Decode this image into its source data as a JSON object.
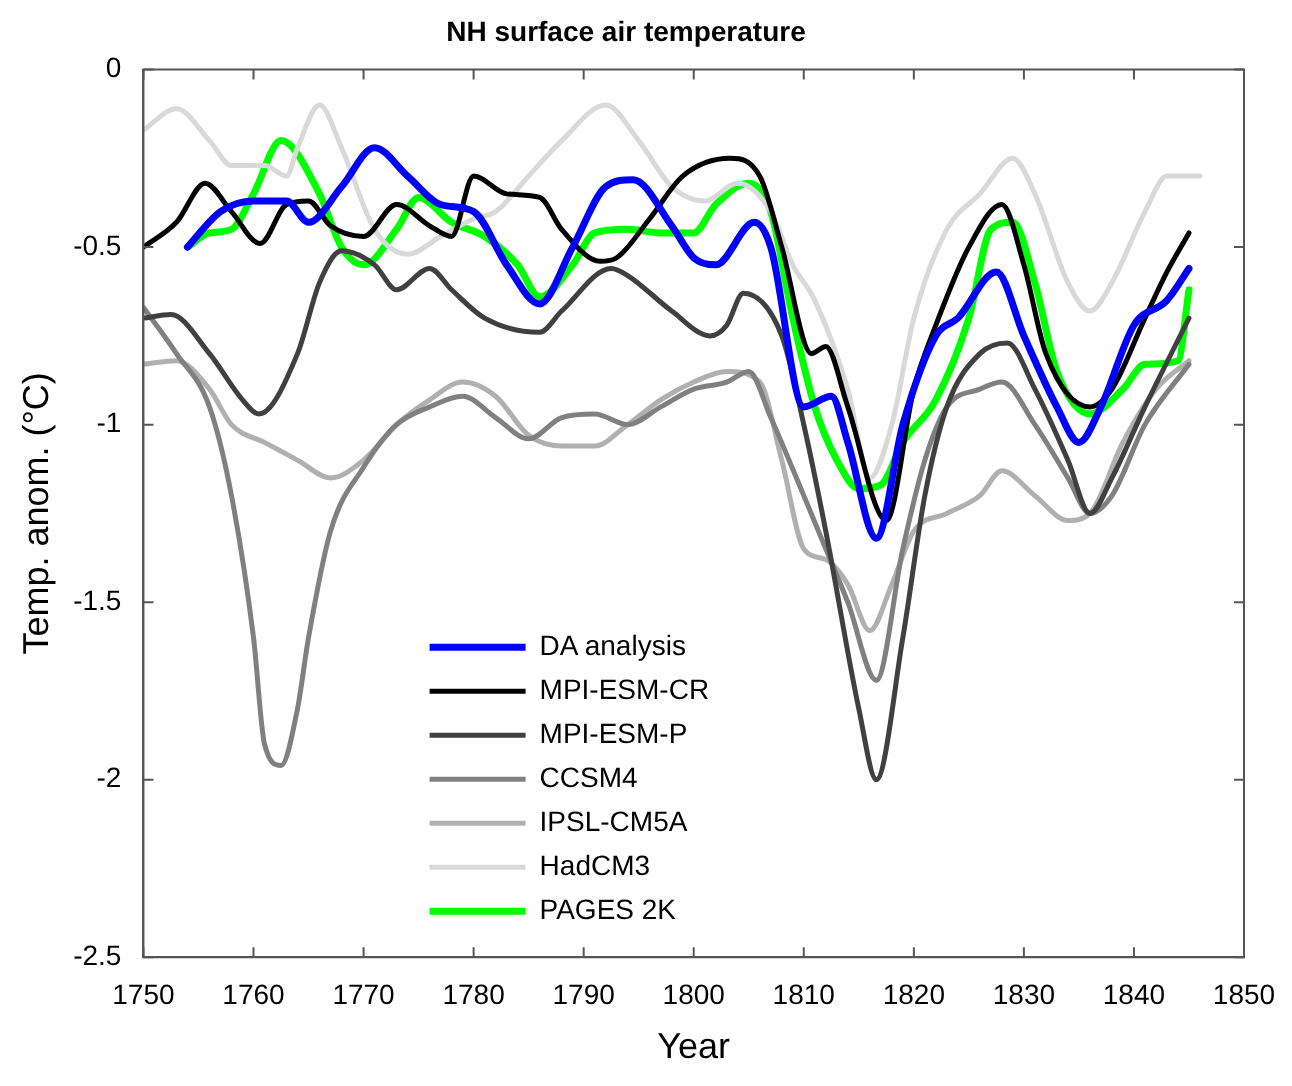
{
  "chart_data": {
    "type": "line",
    "title": "NH surface air temperature",
    "xlabel": "Year",
    "ylabel": "Temp. anom. (°C)",
    "xlim": [
      1750,
      1850
    ],
    "xticks": [
      1750,
      1760,
      1770,
      1780,
      1790,
      1800,
      1810,
      1820,
      1830,
      1840,
      1850
    ],
    "ylim": [
      -2.5,
      0
    ],
    "yticks": [
      -2.5,
      -2,
      -1.5,
      -1,
      -0.5,
      0
    ],
    "grid": false,
    "legend": "bottom",
    "marker": "none",
    "line_style": "solid",
    "series": [
      {
        "name": "DA analysis",
        "color": "#0000ff",
        "x": [
          1754,
          1757,
          1760,
          1763,
          1765,
          1768,
          1771,
          1774,
          1777,
          1780,
          1783,
          1786,
          1789,
          1792,
          1794.5,
          1798,
          1800,
          1802,
          1805.5,
          1807,
          1810,
          1812.5,
          1814,
          1816.6,
          1819,
          1822,
          1824,
          1827.5,
          1830,
          1833,
          1835,
          1837,
          1840,
          1843,
          1845
        ],
        "values": [
          -0.5,
          -0.4,
          -0.37,
          -0.37,
          -0.43,
          -0.33,
          -0.22,
          -0.3,
          -0.38,
          -0.4,
          -0.55,
          -0.66,
          -0.5,
          -0.33,
          -0.31,
          -0.44,
          -0.53,
          -0.55,
          -0.43,
          -0.5,
          -0.95,
          -0.92,
          -1.05,
          -1.32,
          -1.0,
          -0.75,
          -0.7,
          -0.57,
          -0.75,
          -0.95,
          -1.05,
          -0.95,
          -0.72,
          -0.65,
          -0.56
        ]
      },
      {
        "name": "MPI-ESM-CR",
        "color": "#000000",
        "x": [
          1750,
          1753,
          1755.6,
          1758,
          1760.6,
          1763,
          1765,
          1767,
          1770,
          1773,
          1776,
          1778,
          1780,
          1783,
          1786,
          1788,
          1791.5,
          1793,
          1796,
          1799,
          1803.3,
          1806,
          1808,
          1810.7,
          1812,
          1814,
          1817.5,
          1820,
          1822,
          1825,
          1828,
          1830,
          1832,
          1836,
          1838,
          1841,
          1843,
          1845
        ],
        "values": [
          -0.5,
          -0.43,
          -0.32,
          -0.4,
          -0.49,
          -0.38,
          -0.37,
          -0.44,
          -0.47,
          -0.38,
          -0.44,
          -0.47,
          -0.3,
          -0.35,
          -0.36,
          -0.45,
          -0.54,
          -0.53,
          -0.42,
          -0.3,
          -0.25,
          -0.3,
          -0.5,
          -0.8,
          -0.78,
          -0.95,
          -1.27,
          -0.9,
          -0.72,
          -0.5,
          -0.38,
          -0.55,
          -0.8,
          -0.95,
          -0.9,
          -0.7,
          -0.57,
          -0.46
        ]
      },
      {
        "name": "MPI-ESM-P",
        "color": "#404040",
        "x": [
          1750,
          1752.5,
          1756,
          1759,
          1760.5,
          1764,
          1766,
          1768,
          1771,
          1773,
          1776,
          1778,
          1781,
          1786,
          1788,
          1792.5,
          1794,
          1798,
          1801.5,
          1803,
          1804.5,
          1808,
          1810,
          1812,
          1815,
          1816.6,
          1819,
          1821,
          1823,
          1826,
          1828.5,
          1831,
          1834,
          1836,
          1838,
          1841,
          1845
        ],
        "values": [
          -0.7,
          -0.69,
          -0.8,
          -0.93,
          -0.97,
          -0.8,
          -0.6,
          -0.51,
          -0.55,
          -0.62,
          -0.56,
          -0.62,
          -0.7,
          -0.74,
          -0.68,
          -0.56,
          -0.58,
          -0.68,
          -0.75,
          -0.72,
          -0.63,
          -0.75,
          -1.0,
          -1.3,
          -1.8,
          -2.0,
          -1.6,
          -1.2,
          -0.95,
          -0.8,
          -0.77,
          -0.9,
          -1.1,
          -1.25,
          -1.15,
          -0.95,
          -0.7
        ]
      },
      {
        "name": "CCSM4",
        "color": "#808080",
        "x": [
          1750,
          1753,
          1756,
          1758,
          1760,
          1761,
          1762.5,
          1764,
          1765,
          1767,
          1770,
          1773,
          1776,
          1779,
          1782,
          1785,
          1788,
          1791,
          1794,
          1797,
          1800,
          1803,
          1805,
          1807,
          1810,
          1812,
          1814,
          1816.6,
          1819,
          1821,
          1823,
          1826,
          1828,
          1831,
          1834,
          1836,
          1838,
          1841,
          1845
        ],
        "values": [
          -0.67,
          -0.8,
          -0.95,
          -1.2,
          -1.6,
          -1.9,
          -1.96,
          -1.8,
          -1.6,
          -1.3,
          -1.12,
          -1.0,
          -0.95,
          -0.92,
          -0.98,
          -1.04,
          -0.98,
          -0.97,
          -1.0,
          -0.95,
          -0.9,
          -0.88,
          -0.85,
          -0.98,
          -1.2,
          -1.35,
          -1.5,
          -1.72,
          -1.35,
          -1.1,
          -0.95,
          -0.9,
          -0.88,
          -1.0,
          -1.15,
          -1.25,
          -1.2,
          -1.0,
          -0.83
        ]
      },
      {
        "name": "IPSL-CM5A",
        "color": "#b0b0b0",
        "x": [
          1750,
          1753,
          1756,
          1758,
          1761,
          1764,
          1767,
          1770,
          1773,
          1776,
          1779,
          1782,
          1785,
          1788,
          1791,
          1794,
          1797,
          1800,
          1803,
          1806,
          1808,
          1810,
          1812,
          1814,
          1816,
          1818,
          1820,
          1823,
          1826,
          1828,
          1831,
          1834,
          1836,
          1839,
          1842,
          1845
        ],
        "values": [
          -0.83,
          -0.82,
          -0.9,
          -1.0,
          -1.05,
          -1.1,
          -1.15,
          -1.1,
          -1.0,
          -0.93,
          -0.88,
          -0.92,
          -1.03,
          -1.06,
          -1.06,
          -1.0,
          -0.93,
          -0.88,
          -0.85,
          -0.88,
          -1.1,
          -1.35,
          -1.38,
          -1.45,
          -1.58,
          -1.45,
          -1.3,
          -1.25,
          -1.2,
          -1.13,
          -1.2,
          -1.27,
          -1.25,
          -1.05,
          -0.9,
          -0.82
        ]
      },
      {
        "name": "HadCM3",
        "color": "#d9d9d9",
        "x": [
          1750,
          1753,
          1756,
          1758,
          1761,
          1763,
          1764,
          1766,
          1768,
          1771,
          1774,
          1777,
          1780,
          1782,
          1785,
          1788,
          1792,
          1795,
          1798,
          1801,
          1804,
          1807,
          1809,
          1811,
          1814,
          1816,
          1818,
          1820,
          1823,
          1826,
          1829,
          1831,
          1834,
          1836,
          1838,
          1841,
          1843,
          1846
        ],
        "values": [
          -0.17,
          -0.11,
          -0.2,
          -0.27,
          -0.27,
          -0.3,
          -0.22,
          -0.1,
          -0.22,
          -0.45,
          -0.52,
          -0.47,
          -0.42,
          -0.4,
          -0.3,
          -0.2,
          -0.1,
          -0.2,
          -0.33,
          -0.37,
          -0.32,
          -0.4,
          -0.55,
          -0.65,
          -0.9,
          -1.15,
          -1.0,
          -0.7,
          -0.45,
          -0.35,
          -0.25,
          -0.35,
          -0.6,
          -0.68,
          -0.6,
          -0.4,
          -0.3,
          -0.3
        ]
      },
      {
        "name": "PAGES 2K",
        "color": "#00ff00",
        "x": [
          1754,
          1756,
          1758,
          1760,
          1762.5,
          1766,
          1768,
          1770,
          1773,
          1775,
          1778,
          1781,
          1784,
          1786,
          1789,
          1791,
          1794,
          1797,
          1800,
          1802,
          1805,
          1807,
          1809,
          1811,
          1813,
          1815,
          1817,
          1819,
          1822,
          1825,
          1827,
          1829,
          1831,
          1833,
          1836,
          1839,
          1841,
          1844,
          1845
        ],
        "values": [
          -0.5,
          -0.46,
          -0.45,
          -0.35,
          -0.2,
          -0.35,
          -0.5,
          -0.55,
          -0.45,
          -0.36,
          -0.43,
          -0.47,
          -0.55,
          -0.64,
          -0.55,
          -0.46,
          -0.45,
          -0.46,
          -0.46,
          -0.38,
          -0.32,
          -0.4,
          -0.7,
          -0.95,
          -1.1,
          -1.18,
          -1.17,
          -1.05,
          -0.93,
          -0.7,
          -0.45,
          -0.43,
          -0.6,
          -0.85,
          -0.97,
          -0.9,
          -0.83,
          -0.82,
          -0.62
        ]
      }
    ]
  }
}
